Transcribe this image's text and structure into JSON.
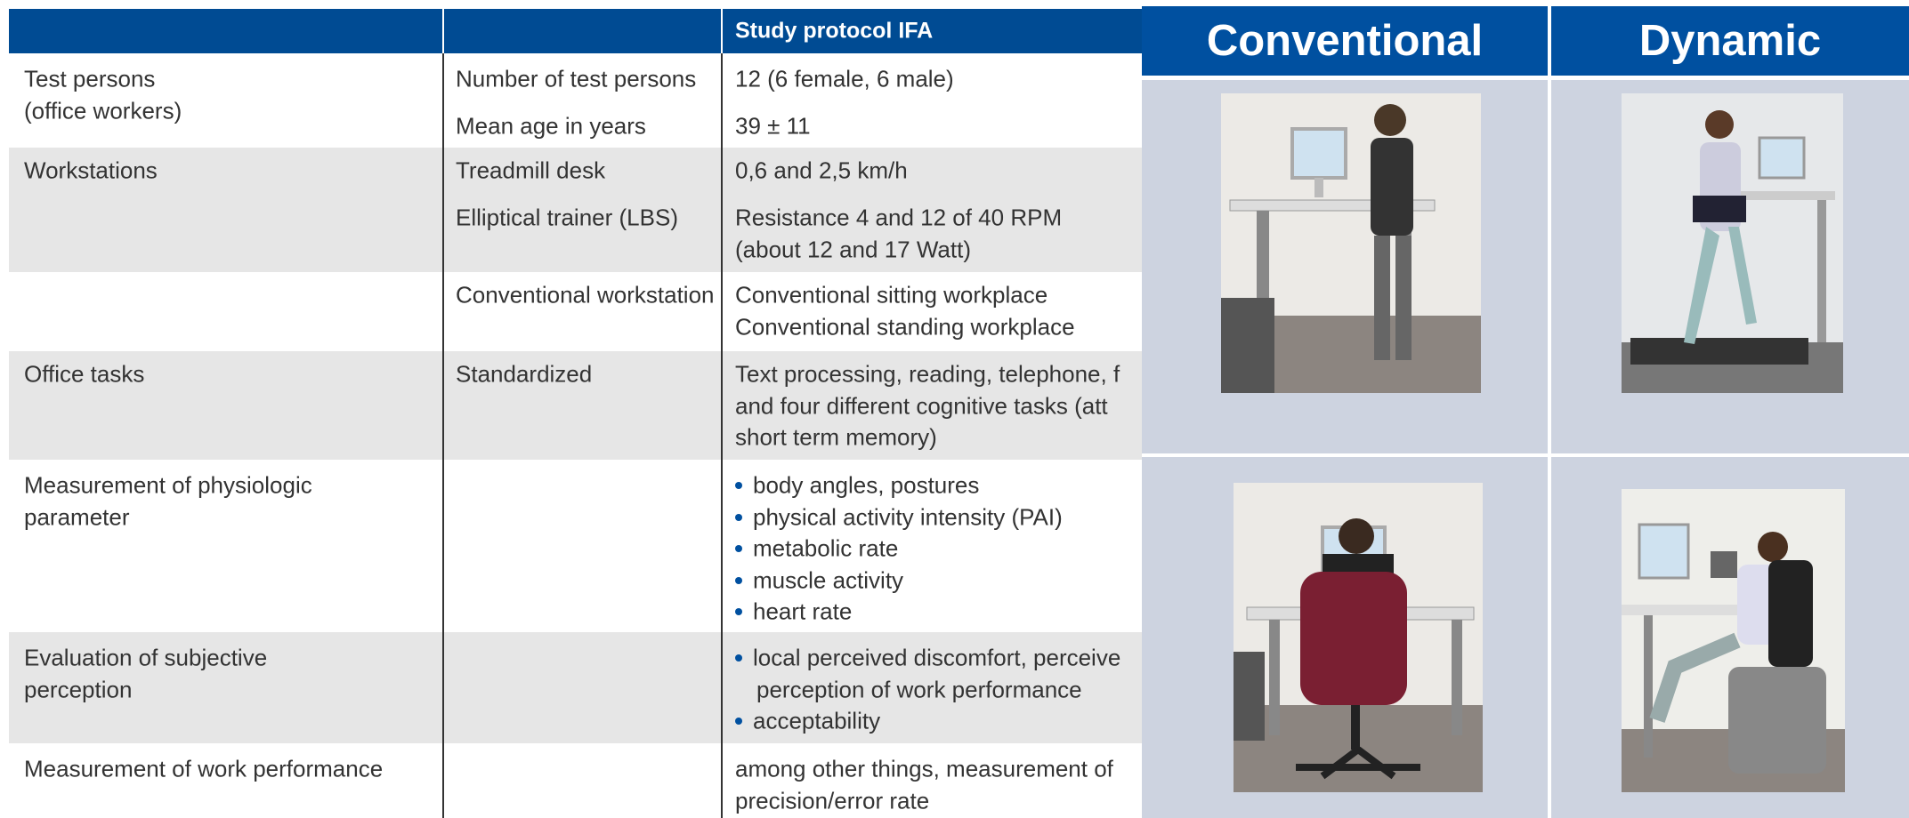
{
  "table": {
    "header": "Study protocol IFA",
    "rows": [
      {
        "category": [
          "Test persons",
          "(office workers)"
        ],
        "items": [
          {
            "label": "Number of test persons",
            "lines": [
              "12 (6 female, 6 male)"
            ]
          },
          {
            "label": "Mean age in years",
            "lines": [
              "39 ± 11"
            ]
          }
        ]
      },
      {
        "category": [
          "Workstations"
        ],
        "items": [
          {
            "label": "Treadmill desk",
            "lines": [
              "0,6 and 2,5 km/h"
            ]
          },
          {
            "label": "Elliptical trainer (LBS)",
            "lines": [
              "Resistance 4 and 12 of 40 RPM",
              "(about 12 and 17 Watt)"
            ]
          },
          {
            "label": "Conventional workstation",
            "lines": [
              "Conventional sitting workplace",
              "Conventional standing workplace"
            ]
          }
        ]
      },
      {
        "category": [
          "Office tasks"
        ],
        "items": [
          {
            "label": "Standardized",
            "lines": [
              "Text processing, reading, telephone, f",
              "and four different cognitive tasks (att",
              "short term memory)"
            ]
          }
        ]
      },
      {
        "category": [
          "Measurement of physiologic",
          "parameter"
        ],
        "items": [
          {
            "bullets": [
              [
                "body angles, postures"
              ],
              [
                "physical activity intensity (PAI)"
              ],
              [
                "metabolic rate"
              ],
              [
                "muscle activity"
              ],
              [
                "heart rate"
              ]
            ]
          }
        ]
      },
      {
        "category": [
          "Evaluation of subjective",
          "perception"
        ],
        "items": [
          {
            "bullets": [
              [
                "local perceived discomfort, perceive",
                "perception of work performance"
              ],
              [
                "acceptability"
              ]
            ]
          }
        ]
      },
      {
        "category": [
          "Measurement of work performance"
        ],
        "items": [
          {
            "lines": [
              "among other things, measurement of",
              "precision/error rate"
            ]
          }
        ]
      }
    ]
  },
  "photos": {
    "columns": [
      "Conventional",
      "Dynamic"
    ]
  }
}
